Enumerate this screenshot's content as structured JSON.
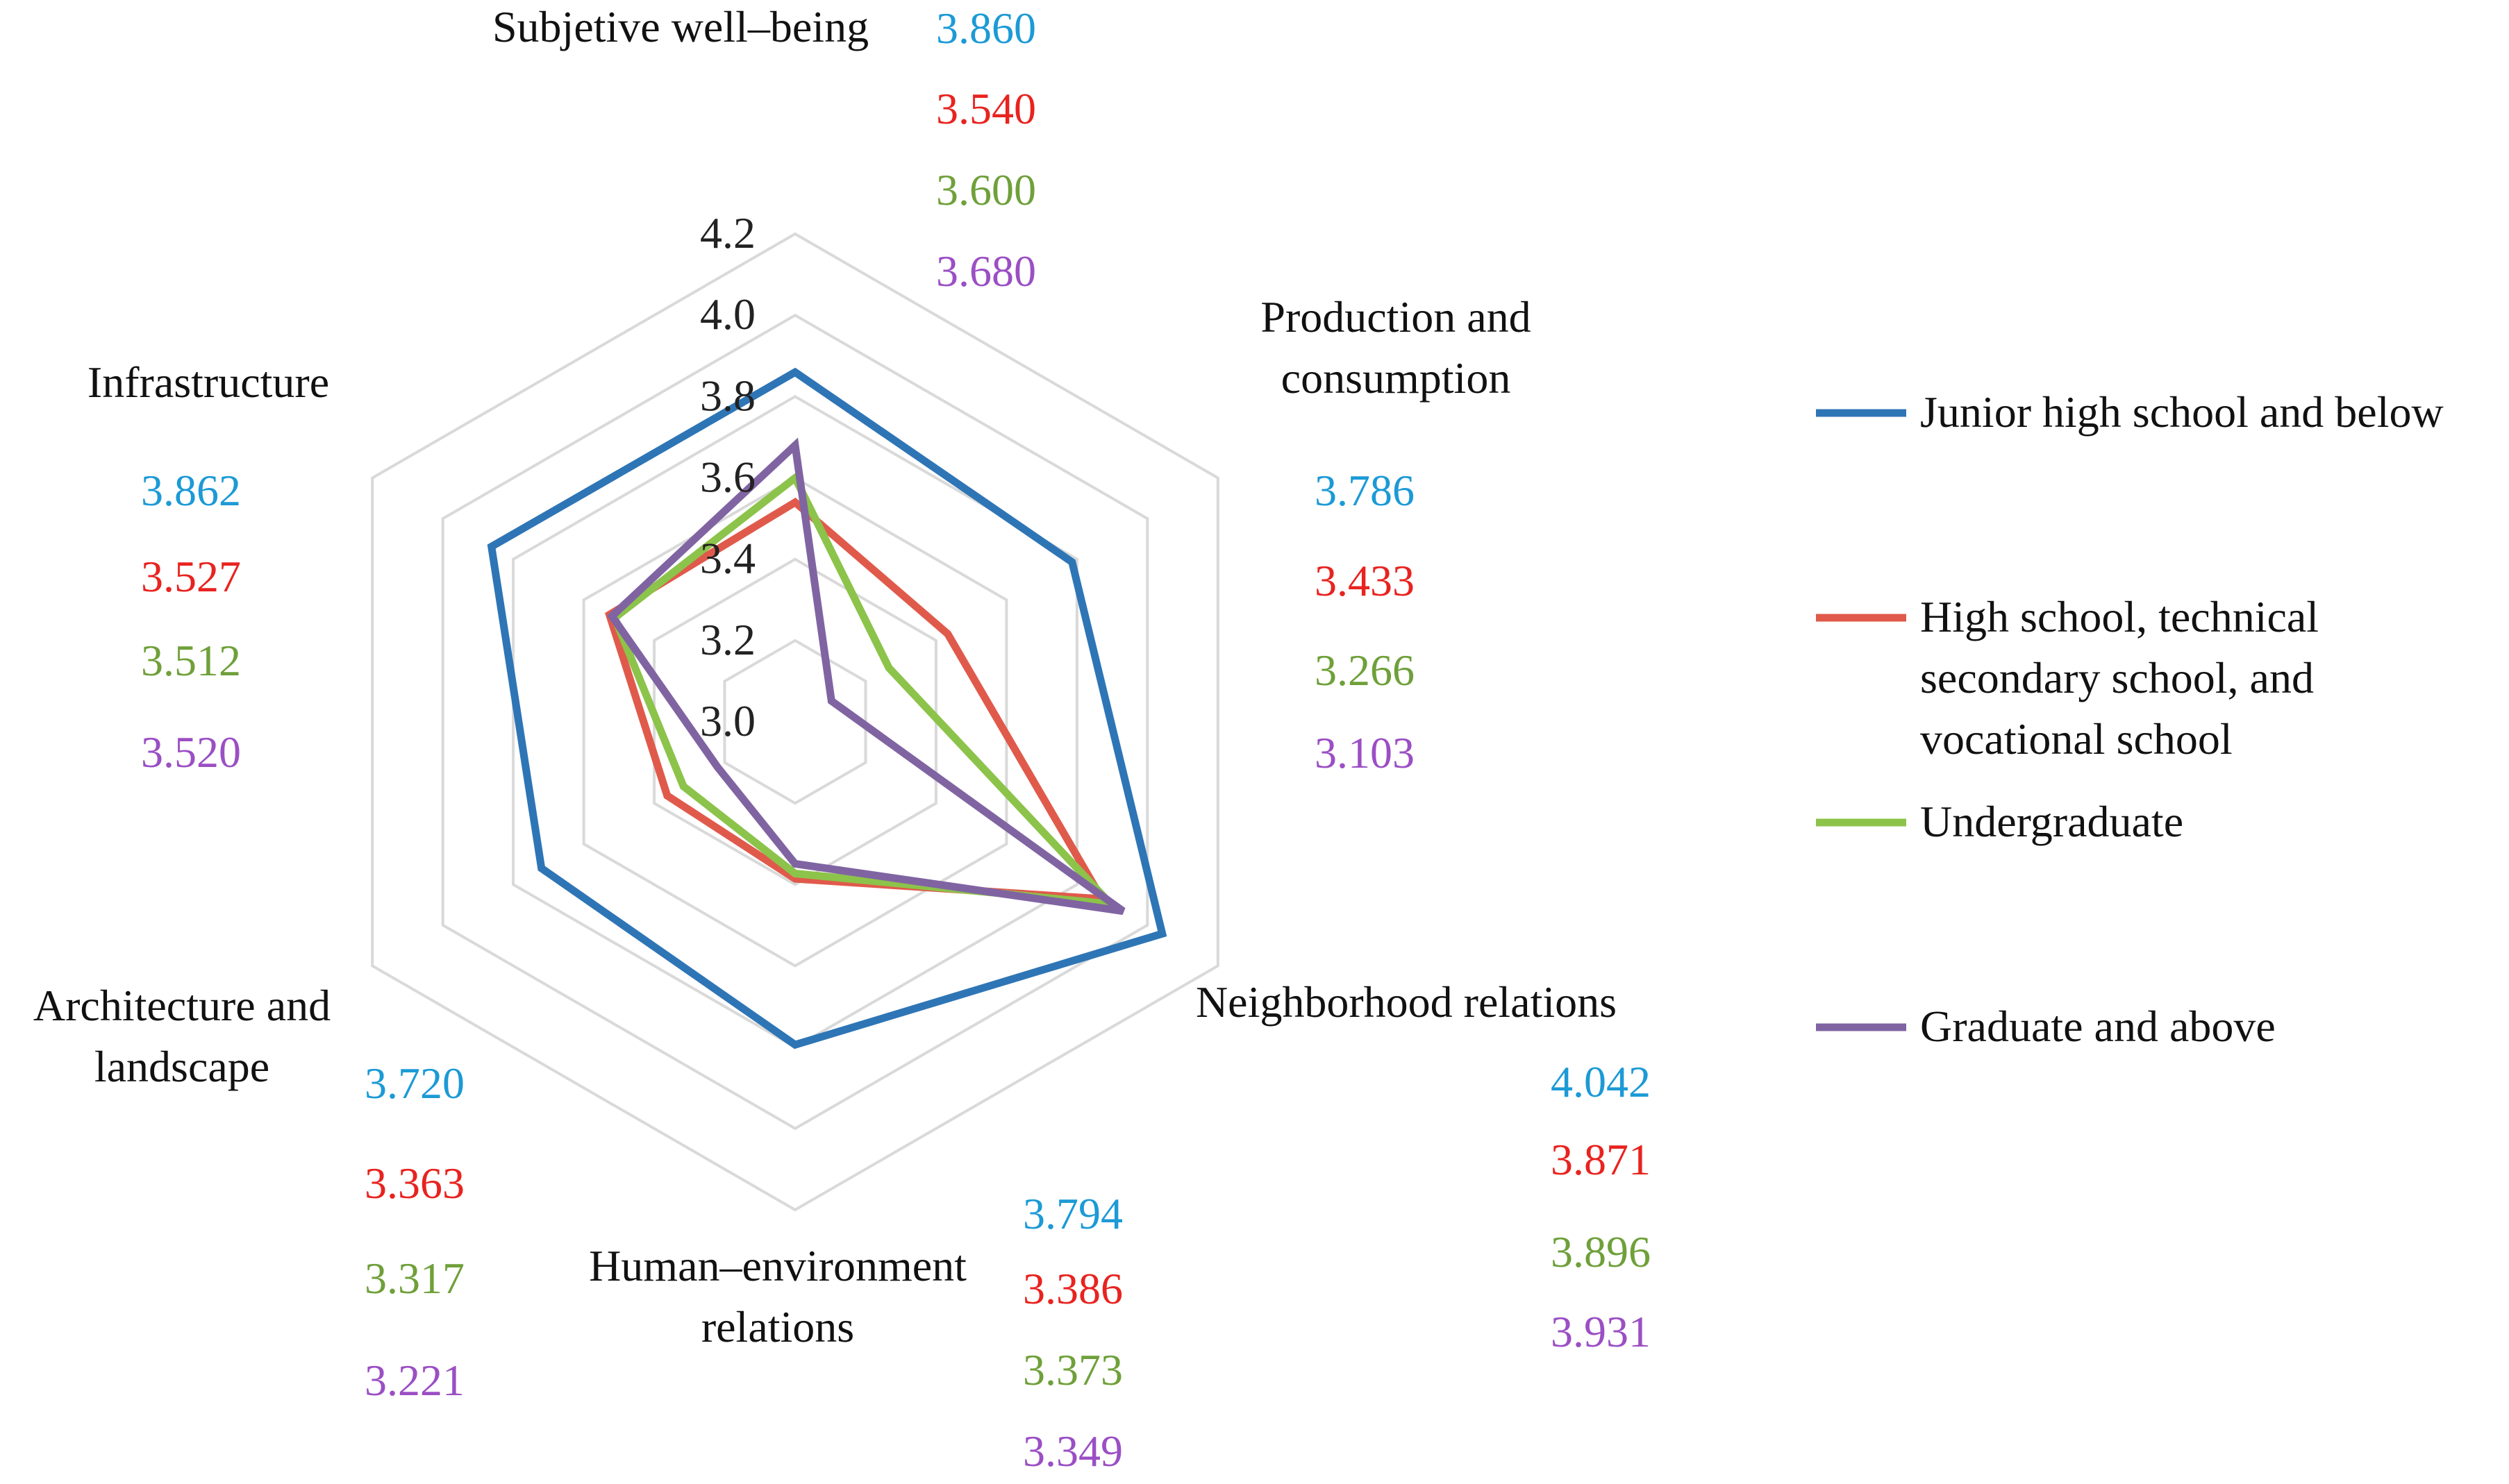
{
  "chart_data": {
    "type": "radar",
    "title": "",
    "axis": {
      "min": 3.0,
      "max": 4.2,
      "ticks": [
        "3.0",
        "3.2",
        "3.4",
        "3.6",
        "3.8",
        "4.0",
        "4.2"
      ],
      "tick_values": [
        3.0,
        3.2,
        3.4,
        3.6,
        3.8,
        4.0,
        4.2
      ],
      "grid": true
    },
    "categories": [
      {
        "label_lines": [
          "Subjetive well–being"
        ]
      },
      {
        "label_lines": [
          "Production and",
          "consumption"
        ]
      },
      {
        "label_lines": [
          "Neighborhood relations"
        ]
      },
      {
        "label_lines": [
          "Human–environment",
          "relations"
        ]
      },
      {
        "label_lines": [
          "Architecture and",
          "landscape"
        ]
      },
      {
        "label_lines": [
          "Infrastructure"
        ]
      }
    ],
    "series": [
      {
        "name": "Junior high school and below",
        "color": "#2E75B6",
        "label_color": "#1C9AD6",
        "values": [
          3.86,
          3.786,
          4.042,
          3.794,
          3.72,
          3.862
        ],
        "labels": [
          "3.860",
          "3.786",
          "4.042",
          "3.794",
          "3.720",
          "3.862"
        ]
      },
      {
        "name": "High school, technical secondary school, and vocational school",
        "legend_lines": [
          "High school, technical",
          "secondary school, and",
          "vocational school"
        ],
        "color": "#E05A4B",
        "label_color": "#E8231F",
        "values": [
          3.54,
          3.433,
          3.871,
          3.386,
          3.363,
          3.527
        ],
        "labels": [
          "3.540",
          "3.433",
          "3.871",
          "3.386",
          "3.363",
          "3.527"
        ]
      },
      {
        "name": "Undergraduate",
        "color": "#8CC34A",
        "label_color": "#6FA03A",
        "values": [
          3.6,
          3.266,
          3.896,
          3.373,
          3.317,
          3.512
        ],
        "labels": [
          "3.600",
          "3.266",
          "3.896",
          "3.373",
          "3.317",
          "3.512"
        ]
      },
      {
        "name": "Graduate and above",
        "color": "#8064A2",
        "label_color": "#9B4FC4",
        "values": [
          3.68,
          3.103,
          3.931,
          3.349,
          3.221,
          3.52
        ],
        "labels": [
          "3.680",
          "3.103",
          "3.931",
          "3.349",
          "3.221",
          "3.520"
        ]
      }
    ],
    "legend": {
      "position": "right"
    }
  }
}
